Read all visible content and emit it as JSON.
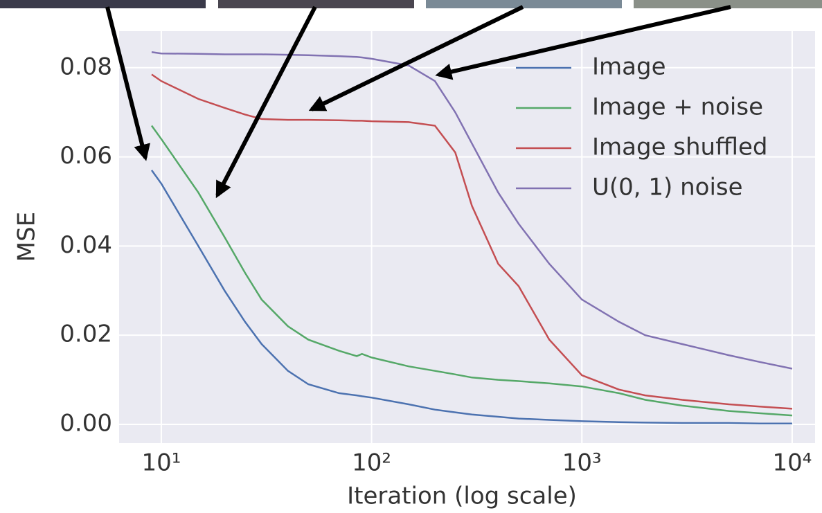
{
  "chart_data": {
    "type": "line",
    "xlabel": "Iteration (log scale)",
    "ylabel": "MSE",
    "xscale": "log",
    "grid": true,
    "legend": "upper right",
    "xlim": [
      6.3,
      12850
    ],
    "ylim": [
      -0.0042,
      0.0882
    ],
    "xticks": [
      {
        "value": 10,
        "label": "10¹"
      },
      {
        "value": 100,
        "label": "10²"
      },
      {
        "value": 1000,
        "label": "10³"
      },
      {
        "value": 10000,
        "label": "10⁴"
      }
    ],
    "yticks": [
      {
        "value": 0,
        "label": "0.00"
      },
      {
        "value": 0.02,
        "label": "0.02"
      },
      {
        "value": 0.04,
        "label": "0.04"
      },
      {
        "value": 0.06,
        "label": "0.06"
      },
      {
        "value": 0.08,
        "label": "0.08"
      }
    ],
    "x": [
      9,
      10,
      15,
      20,
      25,
      30,
      40,
      50,
      70,
      85,
      90,
      100,
      150,
      200,
      250,
      300,
      400,
      500,
      700,
      1000,
      1500,
      2000,
      3000,
      5000,
      7000,
      10000
    ],
    "series": [
      {
        "name": "Image",
        "color": "#4c72b0",
        "values": [
          0.057,
          0.054,
          0.04,
          0.03,
          0.023,
          0.018,
          0.012,
          0.009,
          0.007,
          0.0065,
          0.0063,
          0.006,
          0.0045,
          0.0033,
          0.0027,
          0.0022,
          0.0017,
          0.0013,
          0.001,
          0.0007,
          0.0005,
          0.0004,
          0.0003,
          0.0003,
          0.0002,
          0.0002
        ]
      },
      {
        "name": "Image + noise",
        "color": "#55a868",
        "values": [
          0.067,
          0.064,
          0.052,
          0.042,
          0.034,
          0.028,
          0.022,
          0.019,
          0.0165,
          0.0153,
          0.0158,
          0.015,
          0.013,
          0.012,
          0.0112,
          0.0105,
          0.01,
          0.0097,
          0.0092,
          0.0085,
          0.007,
          0.0055,
          0.0042,
          0.003,
          0.0025,
          0.002
        ]
      },
      {
        "name": "Image shuffled",
        "color": "#c44e52",
        "values": [
          0.0785,
          0.077,
          0.073,
          0.071,
          0.0695,
          0.0685,
          0.0683,
          0.0683,
          0.0682,
          0.0681,
          0.0681,
          0.068,
          0.0678,
          0.067,
          0.061,
          0.049,
          0.036,
          0.031,
          0.019,
          0.011,
          0.0078,
          0.0065,
          0.0055,
          0.0045,
          0.004,
          0.0035
        ]
      },
      {
        "name": "U(0, 1) noise",
        "color": "#8172b2",
        "values": [
          0.0835,
          0.0832,
          0.0831,
          0.083,
          0.083,
          0.083,
          0.0829,
          0.0828,
          0.0826,
          0.0824,
          0.0823,
          0.082,
          0.0805,
          0.077,
          0.07,
          0.063,
          0.052,
          0.045,
          0.036,
          0.028,
          0.023,
          0.02,
          0.018,
          0.0155,
          0.014,
          0.0125
        ]
      }
    ]
  }
}
